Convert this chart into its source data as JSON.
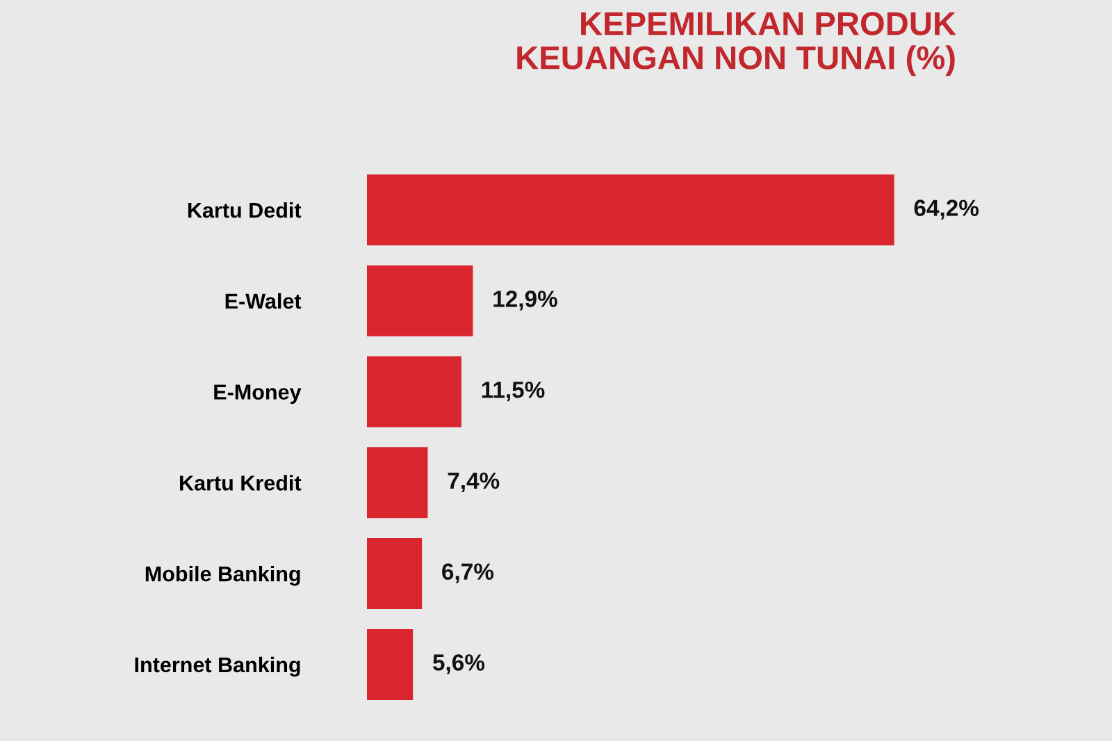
{
  "chart_data": {
    "type": "bar",
    "orientation": "horizontal",
    "title": "KEPEMILIKAN PRODUK\nKEUANGAN NON TUNAI (%)",
    "categories": [
      "Kartu Dedit",
      "E-Walet",
      "E-Money",
      "Kartu Kredit",
      "Mobile Banking",
      "Internet Banking"
    ],
    "values": [
      64.2,
      12.9,
      11.5,
      7.4,
      6.7,
      5.6
    ],
    "value_labels": [
      "64,2%",
      "12,9%",
      "11,5%",
      "7,4%",
      "6,7%",
      "5,6%"
    ],
    "color": "#d9262e",
    "tick_labels": "y",
    "grid": false,
    "legend": false
  }
}
